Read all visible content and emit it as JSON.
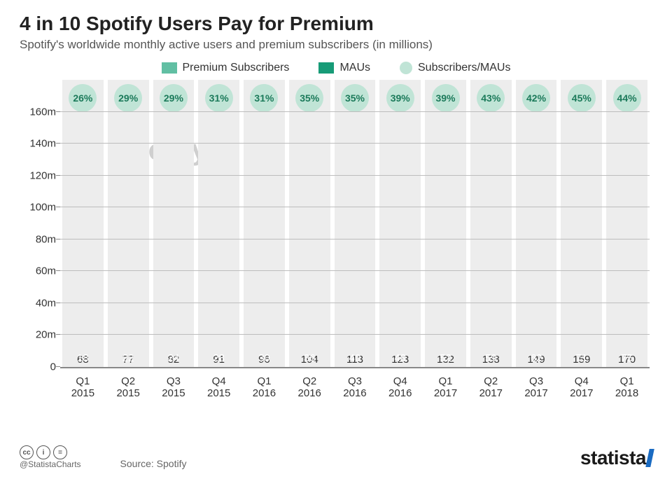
{
  "title": "4 in 10 Spotify Users Pay for Premium",
  "subtitle": "Spotify's worldwide monthly active users and premium subscribers (in millions)",
  "legend": {
    "premium": "Premium Subscribers",
    "maus": "MAUs",
    "ratio": "Subscribers/MAUs"
  },
  "watermark": "Spotify",
  "chart": {
    "type": "stacked-bar-with-badge",
    "ylim": [
      0,
      170
    ],
    "display_top": 180,
    "ytick_step": 20,
    "ytick_suffix": "m",
    "badge_suffix": "%",
    "background_color": "#ffffff",
    "column_bg": "#ededed",
    "grid_color": "#bdbdbd",
    "colors": {
      "premium": "#61bfa3",
      "maus": "#179b77",
      "ratio_circle": "#c0e4d6",
      "ratio_text": "#1b7a5a",
      "label_text": "#333333",
      "prem_label_text": "#ffffff"
    },
    "label_fontsize": 15,
    "categories": [
      {
        "q": "Q1",
        "y": "2015"
      },
      {
        "q": "Q2",
        "y": "2015"
      },
      {
        "q": "Q3",
        "y": "2015"
      },
      {
        "q": "Q4",
        "y": "2015"
      },
      {
        "q": "Q1",
        "y": "2016"
      },
      {
        "q": "Q2",
        "y": "2016"
      },
      {
        "q": "Q3",
        "y": "2016"
      },
      {
        "q": "Q4",
        "y": "2016"
      },
      {
        "q": "Q1",
        "y": "2017"
      },
      {
        "q": "Q2",
        "y": "2017"
      },
      {
        "q": "Q3",
        "y": "2017"
      },
      {
        "q": "Q4",
        "y": "2017"
      },
      {
        "q": "Q1",
        "y": "2018"
      }
    ],
    "maus": [
      68,
      77,
      82,
      91,
      96,
      104,
      113,
      123,
      132,
      138,
      149,
      159,
      170
    ],
    "premium": [
      18,
      22,
      24,
      28,
      30,
      36,
      40,
      48,
      52,
      59,
      62,
      71,
      75
    ],
    "ratio": [
      26,
      29,
      29,
      31,
      31,
      35,
      35,
      39,
      39,
      43,
      42,
      45,
      44
    ]
  },
  "footer": {
    "handle": "@StatistaCharts",
    "source_label": "Source: Spotify",
    "brand": "statista",
    "cc": [
      "cc",
      "i",
      "="
    ]
  }
}
